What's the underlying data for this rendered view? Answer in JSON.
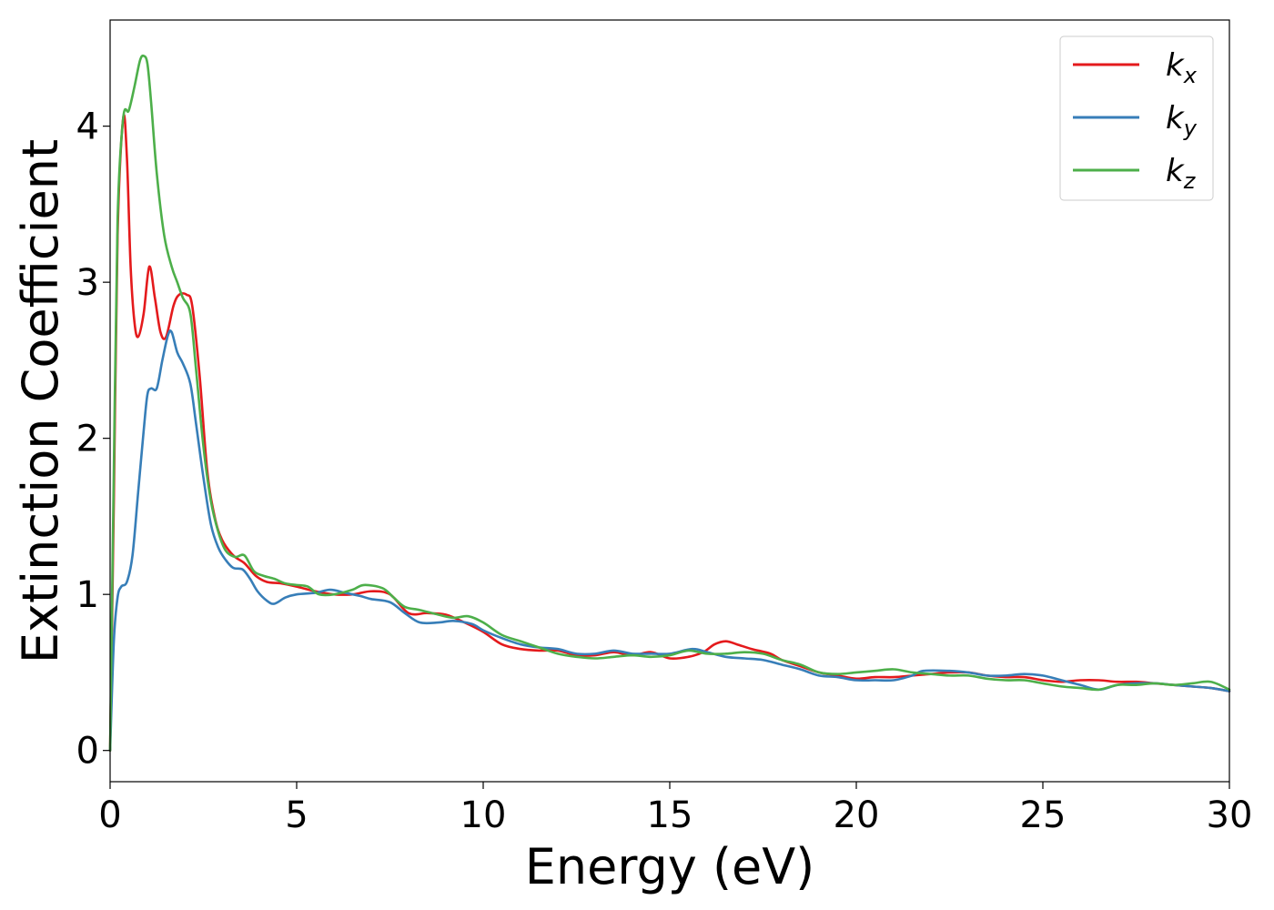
{
  "chart_data": {
    "type": "line",
    "xlabel": "Energy (eV)",
    "ylabel": "Extinction Coefficient",
    "xlim": [
      0,
      30
    ],
    "ylim": [
      -0.2,
      4.68
    ],
    "xticks": [
      0,
      5,
      10,
      15,
      20,
      25,
      30
    ],
    "xtick_labels": [
      "0",
      "5",
      "10",
      "15",
      "20",
      "25",
      "30"
    ],
    "yticks": [
      0,
      1,
      2,
      3,
      4
    ],
    "ytick_labels": [
      "0",
      "1",
      "2",
      "3",
      "4"
    ],
    "grid": false,
    "legend_placement": "top-right",
    "series": [
      {
        "name": "k",
        "subscript": "x",
        "color": "#e41a1c",
        "points": [
          [
            0,
            0
          ],
          [
            0.1,
            1.6
          ],
          [
            0.2,
            3.3
          ],
          [
            0.35,
            4.05
          ],
          [
            0.45,
            3.8
          ],
          [
            0.55,
            3.1
          ],
          [
            0.65,
            2.75
          ],
          [
            0.75,
            2.65
          ],
          [
            0.9,
            2.8
          ],
          [
            1.05,
            3.1
          ],
          [
            1.2,
            2.9
          ],
          [
            1.35,
            2.68
          ],
          [
            1.5,
            2.65
          ],
          [
            1.7,
            2.85
          ],
          [
            1.85,
            2.92
          ],
          [
            2.05,
            2.92
          ],
          [
            2.2,
            2.85
          ],
          [
            2.4,
            2.4
          ],
          [
            2.6,
            1.8
          ],
          [
            2.8,
            1.5
          ],
          [
            3.0,
            1.35
          ],
          [
            3.3,
            1.25
          ],
          [
            3.6,
            1.2
          ],
          [
            3.9,
            1.12
          ],
          [
            4.2,
            1.08
          ],
          [
            4.6,
            1.07
          ],
          [
            5.0,
            1.05
          ],
          [
            5.5,
            1.02
          ],
          [
            6.0,
            1.0
          ],
          [
            6.5,
            1.0
          ],
          [
            7.0,
            1.02
          ],
          [
            7.5,
            1.0
          ],
          [
            8.0,
            0.88
          ],
          [
            8.5,
            0.88
          ],
          [
            9.0,
            0.87
          ],
          [
            9.5,
            0.82
          ],
          [
            10.0,
            0.76
          ],
          [
            10.5,
            0.68
          ],
          [
            11.0,
            0.65
          ],
          [
            11.5,
            0.64
          ],
          [
            12.0,
            0.64
          ],
          [
            12.5,
            0.61
          ],
          [
            13.0,
            0.61
          ],
          [
            13.5,
            0.63
          ],
          [
            14.0,
            0.61
          ],
          [
            14.5,
            0.63
          ],
          [
            15.0,
            0.59
          ],
          [
            15.5,
            0.6
          ],
          [
            15.9,
            0.63
          ],
          [
            16.2,
            0.68
          ],
          [
            16.5,
            0.7
          ],
          [
            16.8,
            0.68
          ],
          [
            17.2,
            0.65
          ],
          [
            17.7,
            0.62
          ],
          [
            18.0,
            0.58
          ],
          [
            18.5,
            0.54
          ],
          [
            19.0,
            0.5
          ],
          [
            19.5,
            0.48
          ],
          [
            20.0,
            0.46
          ],
          [
            20.5,
            0.47
          ],
          [
            21.0,
            0.47
          ],
          [
            21.5,
            0.48
          ],
          [
            22.0,
            0.49
          ],
          [
            22.5,
            0.5
          ],
          [
            23.0,
            0.5
          ],
          [
            23.5,
            0.48
          ],
          [
            24.0,
            0.47
          ],
          [
            24.5,
            0.47
          ],
          [
            25.0,
            0.45
          ],
          [
            25.5,
            0.44
          ],
          [
            26.0,
            0.45
          ],
          [
            26.5,
            0.45
          ],
          [
            27.0,
            0.44
          ],
          [
            27.5,
            0.44
          ],
          [
            28.0,
            0.43
          ],
          [
            28.5,
            0.42
          ],
          [
            29.0,
            0.41
          ],
          [
            29.5,
            0.4
          ],
          [
            30.0,
            0.38
          ]
        ]
      },
      {
        "name": "k",
        "subscript": "y",
        "color": "#377eb8",
        "points": [
          [
            0,
            0
          ],
          [
            0.1,
            0.7
          ],
          [
            0.2,
            0.98
          ],
          [
            0.3,
            1.05
          ],
          [
            0.45,
            1.08
          ],
          [
            0.6,
            1.25
          ],
          [
            0.75,
            1.65
          ],
          [
            0.9,
            2.05
          ],
          [
            1.0,
            2.28
          ],
          [
            1.1,
            2.32
          ],
          [
            1.25,
            2.32
          ],
          [
            1.4,
            2.5
          ],
          [
            1.55,
            2.66
          ],
          [
            1.65,
            2.68
          ],
          [
            1.8,
            2.55
          ],
          [
            1.95,
            2.48
          ],
          [
            2.15,
            2.35
          ],
          [
            2.3,
            2.1
          ],
          [
            2.5,
            1.75
          ],
          [
            2.7,
            1.45
          ],
          [
            2.9,
            1.3
          ],
          [
            3.1,
            1.22
          ],
          [
            3.3,
            1.17
          ],
          [
            3.55,
            1.16
          ],
          [
            3.75,
            1.1
          ],
          [
            3.95,
            1.02
          ],
          [
            4.2,
            0.96
          ],
          [
            4.4,
            0.94
          ],
          [
            4.7,
            0.98
          ],
          [
            5.0,
            1.0
          ],
          [
            5.5,
            1.01
          ],
          [
            5.9,
            1.03
          ],
          [
            6.3,
            1.01
          ],
          [
            6.7,
            0.99
          ],
          [
            7.0,
            0.97
          ],
          [
            7.5,
            0.95
          ],
          [
            7.9,
            0.88
          ],
          [
            8.3,
            0.82
          ],
          [
            8.8,
            0.82
          ],
          [
            9.2,
            0.83
          ],
          [
            9.7,
            0.81
          ],
          [
            10.0,
            0.77
          ],
          [
            10.5,
            0.72
          ],
          [
            11.0,
            0.68
          ],
          [
            11.5,
            0.66
          ],
          [
            12.0,
            0.65
          ],
          [
            12.5,
            0.62
          ],
          [
            13.0,
            0.62
          ],
          [
            13.5,
            0.64
          ],
          [
            14.0,
            0.62
          ],
          [
            14.5,
            0.62
          ],
          [
            15.0,
            0.62
          ],
          [
            15.6,
            0.65
          ],
          [
            16.0,
            0.63
          ],
          [
            16.5,
            0.6
          ],
          [
            17.0,
            0.59
          ],
          [
            17.5,
            0.58
          ],
          [
            18.0,
            0.55
          ],
          [
            18.5,
            0.52
          ],
          [
            19.0,
            0.48
          ],
          [
            19.5,
            0.47
          ],
          [
            20.0,
            0.45
          ],
          [
            20.5,
            0.45
          ],
          [
            21.0,
            0.45
          ],
          [
            21.5,
            0.48
          ],
          [
            21.8,
            0.51
          ],
          [
            22.5,
            0.51
          ],
          [
            23.0,
            0.5
          ],
          [
            23.5,
            0.48
          ],
          [
            24.0,
            0.48
          ],
          [
            24.5,
            0.49
          ],
          [
            25.0,
            0.48
          ],
          [
            25.5,
            0.45
          ],
          [
            26.0,
            0.42
          ],
          [
            26.5,
            0.39
          ],
          [
            27.0,
            0.42
          ],
          [
            27.5,
            0.43
          ],
          [
            28.0,
            0.43
          ],
          [
            28.5,
            0.42
          ],
          [
            29.0,
            0.41
          ],
          [
            29.5,
            0.4
          ],
          [
            30.0,
            0.38
          ]
        ]
      },
      {
        "name": "k",
        "subscript": "z",
        "color": "#4daf4a",
        "points": [
          [
            0,
            0
          ],
          [
            0.1,
            1.8
          ],
          [
            0.2,
            3.4
          ],
          [
            0.35,
            4.05
          ],
          [
            0.5,
            4.1
          ],
          [
            0.65,
            4.25
          ],
          [
            0.8,
            4.42
          ],
          [
            0.9,
            4.45
          ],
          [
            1.0,
            4.4
          ],
          [
            1.1,
            4.15
          ],
          [
            1.25,
            3.7
          ],
          [
            1.45,
            3.3
          ],
          [
            1.65,
            3.1
          ],
          [
            1.8,
            3.0
          ],
          [
            1.95,
            2.9
          ],
          [
            2.15,
            2.8
          ],
          [
            2.3,
            2.45
          ],
          [
            2.5,
            1.95
          ],
          [
            2.7,
            1.6
          ],
          [
            2.9,
            1.4
          ],
          [
            3.1,
            1.28
          ],
          [
            3.35,
            1.24
          ],
          [
            3.6,
            1.25
          ],
          [
            3.85,
            1.15
          ],
          [
            4.1,
            1.12
          ],
          [
            4.4,
            1.1
          ],
          [
            4.7,
            1.07
          ],
          [
            5.0,
            1.06
          ],
          [
            5.3,
            1.05
          ],
          [
            5.6,
            1.0
          ],
          [
            6.0,
            1.0
          ],
          [
            6.5,
            1.03
          ],
          [
            6.8,
            1.06
          ],
          [
            7.3,
            1.04
          ],
          [
            7.6,
            0.98
          ],
          [
            7.9,
            0.92
          ],
          [
            8.3,
            0.9
          ],
          [
            8.8,
            0.87
          ],
          [
            9.2,
            0.85
          ],
          [
            9.6,
            0.86
          ],
          [
            10.0,
            0.82
          ],
          [
            10.5,
            0.74
          ],
          [
            11.0,
            0.7
          ],
          [
            11.5,
            0.66
          ],
          [
            12.0,
            0.62
          ],
          [
            12.5,
            0.6
          ],
          [
            13.0,
            0.59
          ],
          [
            13.5,
            0.6
          ],
          [
            14.0,
            0.61
          ],
          [
            14.5,
            0.6
          ],
          [
            15.0,
            0.61
          ],
          [
            15.5,
            0.64
          ],
          [
            16.0,
            0.62
          ],
          [
            16.5,
            0.62
          ],
          [
            17.0,
            0.63
          ],
          [
            17.5,
            0.62
          ],
          [
            18.0,
            0.58
          ],
          [
            18.5,
            0.55
          ],
          [
            19.0,
            0.5
          ],
          [
            19.5,
            0.49
          ],
          [
            20.0,
            0.5
          ],
          [
            20.5,
            0.51
          ],
          [
            21.0,
            0.52
          ],
          [
            21.5,
            0.5
          ],
          [
            22.0,
            0.49
          ],
          [
            22.5,
            0.48
          ],
          [
            23.0,
            0.48
          ],
          [
            23.5,
            0.46
          ],
          [
            24.0,
            0.45
          ],
          [
            24.5,
            0.45
          ],
          [
            25.0,
            0.43
          ],
          [
            25.5,
            0.41
          ],
          [
            26.0,
            0.4
          ],
          [
            26.5,
            0.39
          ],
          [
            27.0,
            0.42
          ],
          [
            27.5,
            0.42
          ],
          [
            28.0,
            0.43
          ],
          [
            28.5,
            0.42
          ],
          [
            29.0,
            0.43
          ],
          [
            29.5,
            0.44
          ],
          [
            30.0,
            0.39
          ]
        ]
      }
    ]
  }
}
